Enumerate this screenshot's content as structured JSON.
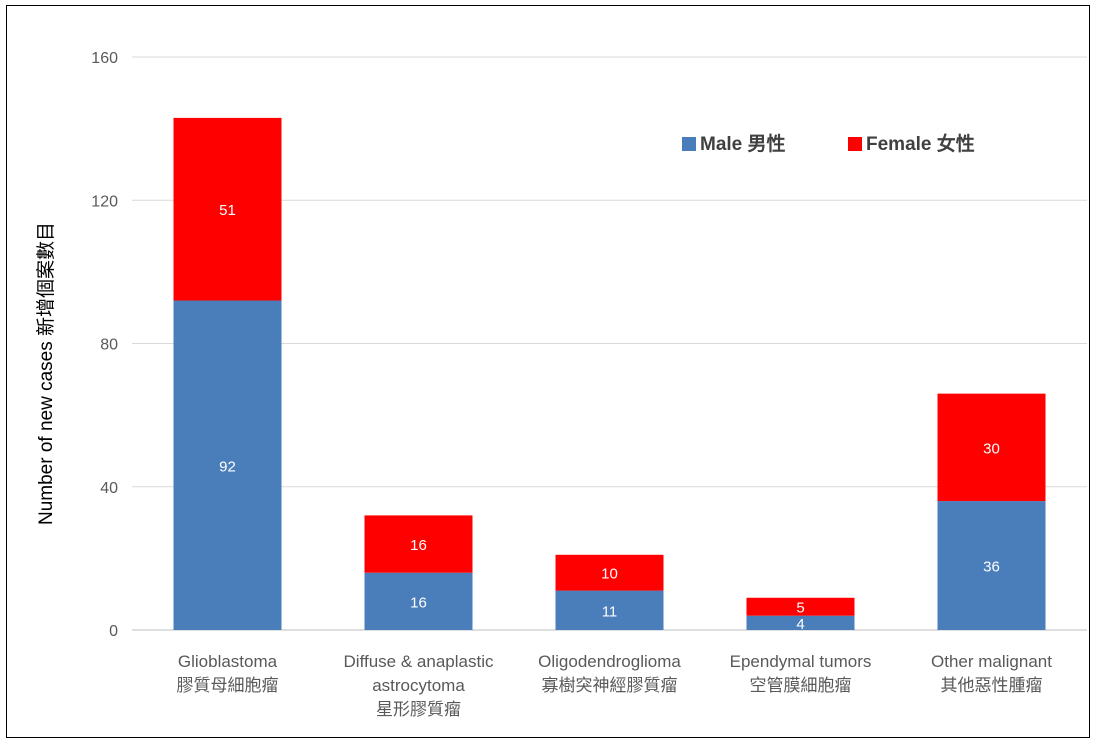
{
  "chart_data": {
    "type": "bar",
    "stacked": true,
    "categories": [
      [
        "Glioblastoma",
        "膠質母細胞瘤"
      ],
      [
        "Diffuse & anaplastic",
        "astrocytoma",
        "星形膠質瘤"
      ],
      [
        "Oligodendroglioma",
        "寡樹突神經膠質瘤"
      ],
      [
        "Ependymal tumors",
        "空管膜細胞瘤"
      ],
      [
        "Other malignant",
        "其他惡性腫瘤"
      ]
    ],
    "series": [
      {
        "name": "Male 男性",
        "color": "#4A7EBB",
        "values": [
          92,
          16,
          11,
          4,
          36
        ]
      },
      {
        "name": "Female 女性",
        "color": "#FF0000",
        "values": [
          51,
          16,
          10,
          5,
          30
        ]
      }
    ],
    "ylabel": "Number of new cases 新增個案數目",
    "xlabel": "",
    "ylim": [
      0,
      160
    ],
    "yticks": [
      0,
      40,
      80,
      120,
      160
    ],
    "grid": true,
    "legend_position": "top-right"
  }
}
